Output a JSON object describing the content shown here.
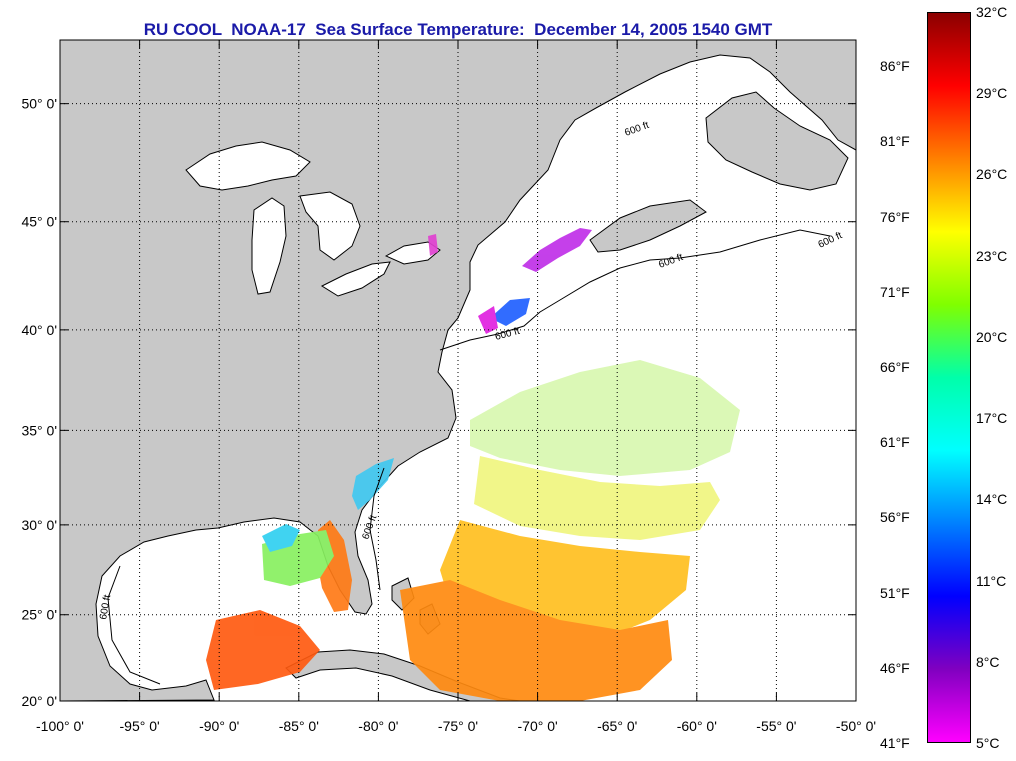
{
  "title": "RU COOL  NOAA-17  Sea Surface Temperature:  December 14, 2005 1540 GMT",
  "map": {
    "lat_labels": [
      "50° 0'",
      "45° 0'",
      "40° 0'",
      "35° 0'",
      "30° 0'",
      "25° 0'",
      "20° 0'"
    ],
    "lon_labels": [
      "-100° 0'",
      "-95° 0'",
      "-90° 0'",
      "-85° 0'",
      "-80° 0'",
      "-75° 0'",
      "-70° 0'",
      "-65° 0'",
      "-60° 0'",
      "-55° 0'",
      "-50° 0'"
    ],
    "lat_values": [
      50,
      45,
      40,
      35,
      30,
      25,
      20
    ],
    "lon_values": [
      -100,
      -95,
      -90,
      -85,
      -80,
      -75,
      -70,
      -65,
      -60,
      -55,
      -50
    ],
    "contour_label": "600 ft",
    "colors": {
      "land": "#c8c8c8",
      "ocean": "#ffffff",
      "grid": "#000000"
    }
  },
  "colorbar": {
    "celsius_labels": [
      "32°C",
      "29°C",
      "26°C",
      "23°C",
      "20°C",
      "17°C",
      "14°C",
      "11°C",
      "8°C",
      "5°C"
    ],
    "fahrenheit_labels": [
      "86°F",
      "81°F",
      "76°F",
      "71°F",
      "66°F",
      "61°F",
      "56°F",
      "51°F",
      "46°F",
      "41°F"
    ],
    "celsius_range": [
      5,
      32
    ],
    "gradient": [
      "#8b0000",
      "#ff0000",
      "#ff8000",
      "#ffff00",
      "#80ff00",
      "#00ffaa",
      "#00ffff",
      "#0080ff",
      "#0000ff",
      "#8000c0",
      "#ff00ff"
    ]
  }
}
